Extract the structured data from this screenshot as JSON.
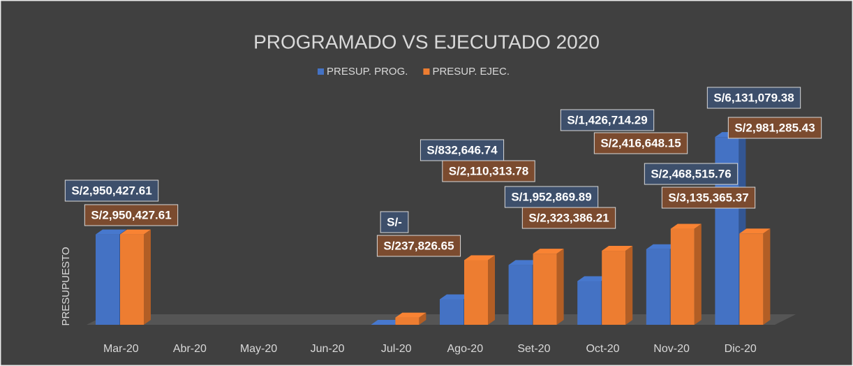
{
  "chart_data": {
    "type": "bar3d",
    "title": "PROGRAMADO VS EJECUTADO 2020",
    "y_label": "PRESUPUESTO",
    "categories": [
      "Mar-20",
      "Abr-20",
      "May-20",
      "Jun-20",
      "Jul-20",
      "Ago-20",
      "Set-20",
      "Oct-20",
      "Nov-20",
      "Dic-20"
    ],
    "series": [
      {
        "name": "PRESUP. PROG.",
        "color": "#4472c4",
        "values": [
          2950427.61,
          null,
          null,
          null,
          0,
          832646.74,
          1952869.89,
          1426714.29,
          2468515.76,
          6131079.38
        ],
        "value_labels": [
          "S/2,950,427.61",
          null,
          null,
          null,
          "S/-",
          "S/832,646.74",
          "S/1,952,869.89",
          "S/1,426,714.29",
          "S/2,468,515.76",
          "S/6,131,079.38"
        ],
        "label_color": "#3d4f6b"
      },
      {
        "name": "PRESUP. EJEC.",
        "color": "#ed7d31",
        "values": [
          2950427.61,
          null,
          null,
          null,
          237826.65,
          2110313.78,
          2323386.21,
          2416648.15,
          3135365.37,
          2981285.43
        ],
        "value_labels": [
          "S/2,950,427.61",
          null,
          null,
          null,
          "S/237,826.65",
          "S/2,110,313.78",
          "S/2,323,386.21",
          "S/2,416,648.15",
          "S/3,135,365.37",
          "S/2,981,285.43"
        ],
        "label_color": "#7b4b2f"
      }
    ],
    "ylim": [
      0,
      6500000
    ],
    "legend": "top"
  }
}
